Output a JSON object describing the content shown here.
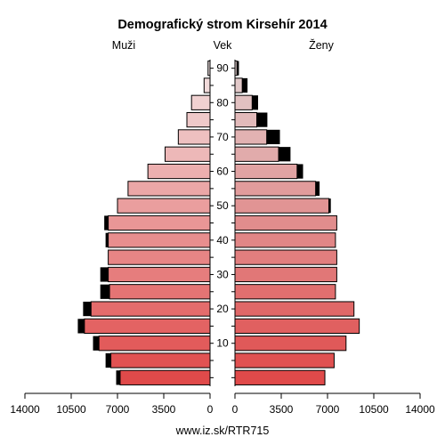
{
  "chart_data": {
    "type": "bar",
    "title": "Demografický strom Kirsehír 2014",
    "left_label": "Muži",
    "center_label": "Vek",
    "right_label": "Ženy",
    "footer": "www.iz.sk/RTR715",
    "age_groups": [
      "0-4",
      "5-9",
      "10-14",
      "15-19",
      "20-24",
      "25-29",
      "30-34",
      "35-39",
      "40-44",
      "45-49",
      "50-54",
      "55-59",
      "60-64",
      "65-69",
      "70-74",
      "75-79",
      "80-84",
      "85-89",
      "90+"
    ],
    "age_tick_labels": [
      {
        "age": "10",
        "group_index": 2
      },
      {
        "age": "20",
        "group_index": 4
      },
      {
        "age": "30",
        "group_index": 6
      },
      {
        "age": "40",
        "group_index": 8
      },
      {
        "age": "50",
        "group_index": 10
      },
      {
        "age": "60",
        "group_index": 12
      },
      {
        "age": "70",
        "group_index": 14
      },
      {
        "age": "80",
        "group_index": 16
      },
      {
        "age": "90",
        "group_index": 18
      }
    ],
    "x_ticks": [
      14000,
      10500,
      7000,
      3500,
      0
    ],
    "x_tick_labels": [
      "14000",
      "10500",
      "7000",
      "3500",
      "0"
    ],
    "x_tick_labels_right": [
      "0",
      "3500",
      "7000",
      "10500",
      "14000"
    ],
    "xlim": [
      0,
      14000
    ],
    "males": [
      6800,
      7500,
      8400,
      9500,
      9000,
      7600,
      7700,
      7700,
      7700,
      7700,
      7000,
      6200,
      4700,
      3400,
      2400,
      1750,
      1400,
      450,
      150
    ],
    "males_excess": [
      300,
      400,
      450,
      500,
      600,
      700,
      600,
      0,
      200,
      300,
      0,
      0,
      0,
      0,
      0,
      0,
      0,
      0,
      0
    ],
    "females": [
      6800,
      7500,
      8400,
      9400,
      9000,
      7600,
      7700,
      7700,
      7600,
      7700,
      7100,
      6100,
      4700,
      3300,
      2400,
      1650,
      1300,
      550,
      150
    ],
    "females_excess": [
      0,
      0,
      0,
      0,
      0,
      0,
      0,
      0,
      0,
      0,
      150,
      300,
      450,
      900,
      1000,
      800,
      450,
      400,
      150
    ],
    "colors": {
      "male_young": "#e04a4a",
      "male_old": "#f2e2e2",
      "female_young": "#e04a4a",
      "female_old": "#e2d0d0",
      "excess": "#000000",
      "stroke": "#000000"
    }
  }
}
